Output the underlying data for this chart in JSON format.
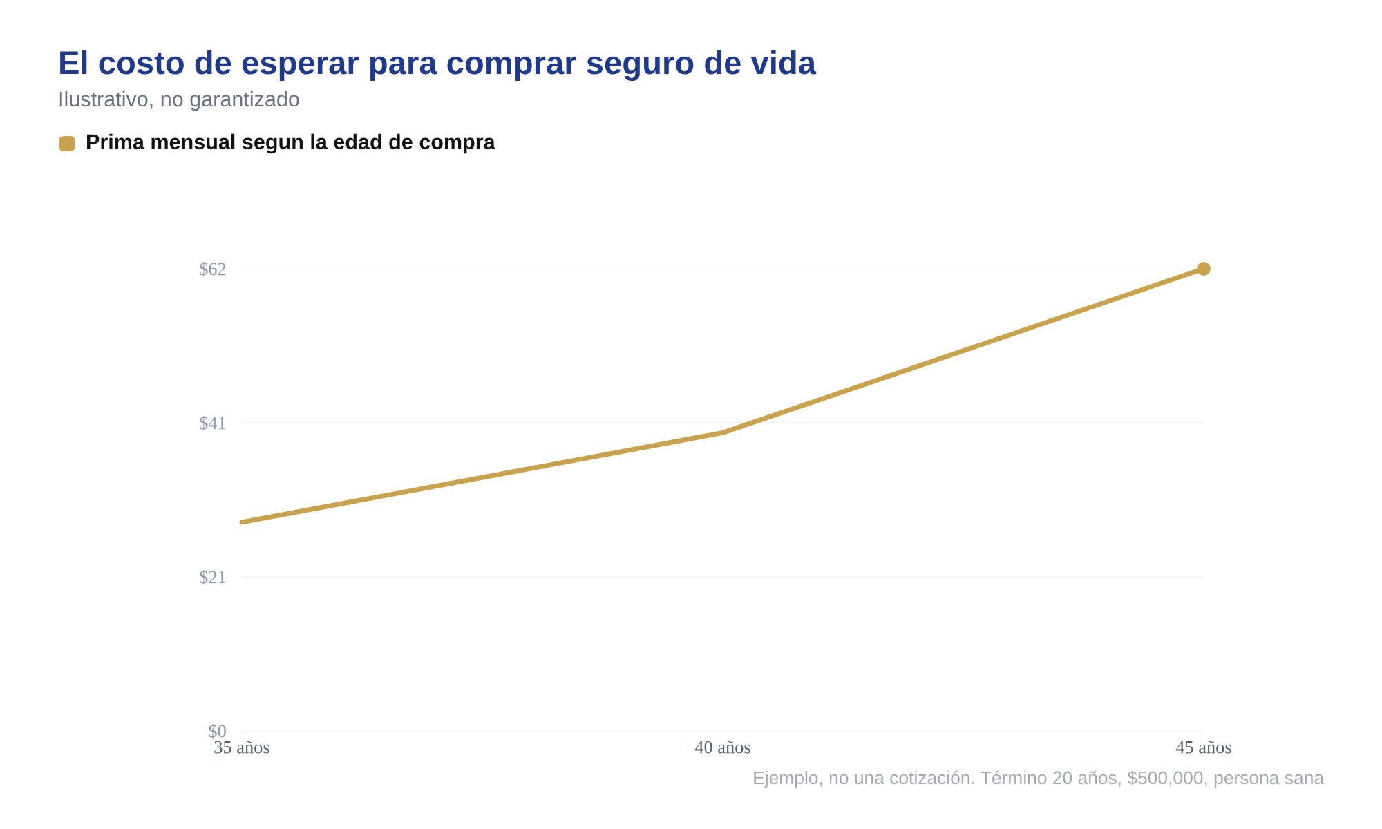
{
  "chart_data": {
    "type": "line",
    "title": "El costo de esperar para comprar seguro de vida",
    "subtitle": "Ilustrativo, no garantizado",
    "categories": [
      "35 años",
      "40 años",
      "45 años"
    ],
    "series": [
      {
        "name": "Prima mensual segun la edad de compra",
        "color": "#c9a24d",
        "marker": "none",
        "values": [
          28,
          40,
          62
        ]
      },
      {
        "type": "scatter",
        "color": "#c9a24d",
        "marker": "circle",
        "values": [
          null,
          null,
          62
        ]
      }
    ],
    "ylim": [
      0,
      62
    ],
    "yticks": [
      {
        "value": 0,
        "label": "$0"
      },
      {
        "value": 20.67,
        "label": "$21"
      },
      {
        "value": 41.33,
        "label": "$41"
      },
      {
        "value": 62,
        "label": "$62"
      }
    ],
    "grid": "y",
    "legend": "top left",
    "line_style": "solid",
    "annotations": [
      "Ejemplo, no una cotización. Término 20 años, $500,000, persona sana"
    ]
  }
}
